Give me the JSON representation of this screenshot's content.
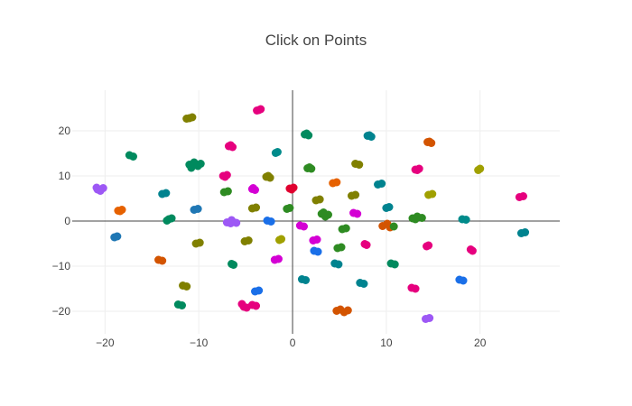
{
  "chart_data": {
    "type": "scatter",
    "title": "Click on Points",
    "xlabel": "",
    "ylabel": "",
    "xlim": [
      -23.5,
      28.5
    ],
    "ylim": [
      -25,
      29
    ],
    "x_ticks": [
      -20,
      -10,
      0,
      10,
      20
    ],
    "y_ticks": [
      -20,
      -10,
      0,
      10,
      20
    ],
    "x_tick_labels": [
      "−20",
      "−10",
      "0",
      "10",
      "20"
    ],
    "y_tick_labels": [
      "−20",
      "−10",
      "0",
      "10",
      "20"
    ],
    "grid": true,
    "zero_lines": true,
    "legend": "none",
    "colors": [
      "#1f77b4",
      "#00838f",
      "#008a5e",
      "#2e8b22",
      "#808000",
      "#a0a000",
      "#e66100",
      "#d35400",
      "#ff4fa0",
      "#e6007e",
      "#d400d4",
      "#a33fee",
      "#9d58f5",
      "#1a6fe8",
      "#e00030",
      "#008b8b"
    ],
    "points": [
      {
        "x": -11.0,
        "y": 22.8,
        "c": "#808000"
      },
      {
        "x": -10.7,
        "y": 23.0,
        "c": "#808000"
      },
      {
        "x": -11.3,
        "y": 22.7,
        "c": "#808000"
      },
      {
        "x": -3.6,
        "y": 24.6,
        "c": "#e6007e"
      },
      {
        "x": -3.4,
        "y": 24.8,
        "c": "#e6007e"
      },
      {
        "x": -3.8,
        "y": 24.5,
        "c": "#e6007e"
      },
      {
        "x": 1.3,
        "y": 19.2,
        "c": "#008a5e"
      },
      {
        "x": 1.7,
        "y": 19.0,
        "c": "#008a5e"
      },
      {
        "x": 1.5,
        "y": 19.4,
        "c": "#008a5e"
      },
      {
        "x": 8.0,
        "y": 18.9,
        "c": "#00838f"
      },
      {
        "x": 8.4,
        "y": 18.7,
        "c": "#00838f"
      },
      {
        "x": 8.2,
        "y": 19.0,
        "c": "#00838f"
      },
      {
        "x": 14.4,
        "y": 17.5,
        "c": "#d35400"
      },
      {
        "x": 14.8,
        "y": 17.3,
        "c": "#d35400"
      },
      {
        "x": 14.6,
        "y": 17.6,
        "c": "#d35400"
      },
      {
        "x": -6.8,
        "y": 16.6,
        "c": "#e6007e"
      },
      {
        "x": -6.4,
        "y": 16.4,
        "c": "#e6007e"
      },
      {
        "x": -6.6,
        "y": 16.8,
        "c": "#e6007e"
      },
      {
        "x": -17.4,
        "y": 14.6,
        "c": "#008a5e"
      },
      {
        "x": -17.0,
        "y": 14.3,
        "c": "#008a5e"
      },
      {
        "x": -1.8,
        "y": 15.1,
        "c": "#008b8b"
      },
      {
        "x": -1.6,
        "y": 15.3,
        "c": "#008b8b"
      },
      {
        "x": -11.0,
        "y": 12.5,
        "c": "#008a5e"
      },
      {
        "x": -10.5,
        "y": 13.0,
        "c": "#008a5e"
      },
      {
        "x": -10.1,
        "y": 12.2,
        "c": "#008a5e"
      },
      {
        "x": -10.8,
        "y": 11.8,
        "c": "#008a5e"
      },
      {
        "x": -9.8,
        "y": 12.7,
        "c": "#008a5e"
      },
      {
        "x": 1.6,
        "y": 11.7,
        "c": "#2e8b22"
      },
      {
        "x": 2.0,
        "y": 11.6,
        "c": "#2e8b22"
      },
      {
        "x": 1.8,
        "y": 11.9,
        "c": "#2e8b22"
      },
      {
        "x": 6.7,
        "y": 12.7,
        "c": "#808000"
      },
      {
        "x": 7.1,
        "y": 12.5,
        "c": "#808000"
      },
      {
        "x": 13.1,
        "y": 11.4,
        "c": "#e6007e"
      },
      {
        "x": 13.5,
        "y": 11.6,
        "c": "#e6007e"
      },
      {
        "x": 13.3,
        "y": 11.3,
        "c": "#e6007e"
      },
      {
        "x": 19.8,
        "y": 11.3,
        "c": "#a0a000"
      },
      {
        "x": 20.0,
        "y": 11.6,
        "c": "#a0a000"
      },
      {
        "x": -7.4,
        "y": 10.0,
        "c": "#e6007e"
      },
      {
        "x": -7.0,
        "y": 10.2,
        "c": "#e6007e"
      },
      {
        "x": -7.2,
        "y": 9.8,
        "c": "#e6007e"
      },
      {
        "x": -2.8,
        "y": 9.8,
        "c": "#808000"
      },
      {
        "x": -2.4,
        "y": 9.6,
        "c": "#808000"
      },
      {
        "x": -2.6,
        "y": 10.0,
        "c": "#808000"
      },
      {
        "x": 4.3,
        "y": 8.4,
        "c": "#e66100"
      },
      {
        "x": 4.7,
        "y": 8.6,
        "c": "#e66100"
      },
      {
        "x": 9.1,
        "y": 8.1,
        "c": "#00838f"
      },
      {
        "x": 9.5,
        "y": 8.3,
        "c": "#00838f"
      },
      {
        "x": -20.8,
        "y": 7.0,
        "c": "#9d58f5"
      },
      {
        "x": -20.2,
        "y": 7.3,
        "c": "#9d58f5"
      },
      {
        "x": -20.5,
        "y": 6.7,
        "c": "#9d58f5"
      },
      {
        "x": -20.9,
        "y": 7.4,
        "c": "#9d58f5"
      },
      {
        "x": -7.3,
        "y": 6.4,
        "c": "#2e8b22"
      },
      {
        "x": -6.9,
        "y": 6.6,
        "c": "#2e8b22"
      },
      {
        "x": -4.3,
        "y": 7.1,
        "c": "#d400d4"
      },
      {
        "x": -4.0,
        "y": 6.9,
        "c": "#d400d4"
      },
      {
        "x": -4.2,
        "y": 7.3,
        "c": "#d400d4"
      },
      {
        "x": -0.3,
        "y": 7.2,
        "c": "#e00030"
      },
      {
        "x": 0.1,
        "y": 7.4,
        "c": "#e00030"
      },
      {
        "x": -0.1,
        "y": 7.0,
        "c": "#e00030"
      },
      {
        "x": -13.9,
        "y": 6.0,
        "c": "#00838f"
      },
      {
        "x": -13.5,
        "y": 6.2,
        "c": "#00838f"
      },
      {
        "x": 2.5,
        "y": 4.6,
        "c": "#808000"
      },
      {
        "x": 2.9,
        "y": 4.8,
        "c": "#808000"
      },
      {
        "x": 6.3,
        "y": 5.6,
        "c": "#808000"
      },
      {
        "x": 6.7,
        "y": 5.8,
        "c": "#808000"
      },
      {
        "x": 14.5,
        "y": 5.8,
        "c": "#a0a000"
      },
      {
        "x": 14.9,
        "y": 6.0,
        "c": "#a0a000"
      },
      {
        "x": 24.2,
        "y": 5.3,
        "c": "#e6007e"
      },
      {
        "x": 24.6,
        "y": 5.5,
        "c": "#e6007e"
      },
      {
        "x": -18.6,
        "y": 2.3,
        "c": "#e66100"
      },
      {
        "x": -18.2,
        "y": 2.5,
        "c": "#e66100"
      },
      {
        "x": -18.4,
        "y": 2.2,
        "c": "#e66100"
      },
      {
        "x": -10.5,
        "y": 2.5,
        "c": "#1f77b4"
      },
      {
        "x": -10.1,
        "y": 2.7,
        "c": "#1f77b4"
      },
      {
        "x": -4.3,
        "y": 2.8,
        "c": "#808000"
      },
      {
        "x": -3.9,
        "y": 3.0,
        "c": "#808000"
      },
      {
        "x": -0.6,
        "y": 2.7,
        "c": "#2e8b22"
      },
      {
        "x": -0.3,
        "y": 2.9,
        "c": "#2e8b22"
      },
      {
        "x": 3.1,
        "y": 1.6,
        "c": "#2e8b22"
      },
      {
        "x": 3.5,
        "y": 1.0,
        "c": "#2e8b22"
      },
      {
        "x": 3.8,
        "y": 1.4,
        "c": "#2e8b22"
      },
      {
        "x": 3.3,
        "y": 1.9,
        "c": "#2e8b22"
      },
      {
        "x": 6.5,
        "y": 1.8,
        "c": "#d400d4"
      },
      {
        "x": 6.9,
        "y": 1.6,
        "c": "#d400d4"
      },
      {
        "x": 10.0,
        "y": 2.9,
        "c": "#00838f"
      },
      {
        "x": 10.3,
        "y": 3.1,
        "c": "#00838f"
      },
      {
        "x": -13.2,
        "y": 0.4,
        "c": "#008a5e"
      },
      {
        "x": -12.9,
        "y": 0.6,
        "c": "#008a5e"
      },
      {
        "x": -13.4,
        "y": 0.1,
        "c": "#008a5e"
      },
      {
        "x": -7.0,
        "y": -0.3,
        "c": "#9d58f5"
      },
      {
        "x": -6.5,
        "y": 0.2,
        "c": "#9d58f5"
      },
      {
        "x": -6.0,
        "y": -0.4,
        "c": "#9d58f5"
      },
      {
        "x": -6.6,
        "y": -0.5,
        "c": "#9d58f5"
      },
      {
        "x": -2.7,
        "y": 0.1,
        "c": "#1a6fe8"
      },
      {
        "x": -2.3,
        "y": -0.1,
        "c": "#1a6fe8"
      },
      {
        "x": 0.8,
        "y": -1.0,
        "c": "#d400d4"
      },
      {
        "x": 1.2,
        "y": -1.2,
        "c": "#d400d4"
      },
      {
        "x": 5.3,
        "y": -1.8,
        "c": "#2e8b22"
      },
      {
        "x": 5.7,
        "y": -1.6,
        "c": "#2e8b22"
      },
      {
        "x": 9.6,
        "y": -1.1,
        "c": "#d35400"
      },
      {
        "x": 10.1,
        "y": -0.6,
        "c": "#d35400"
      },
      {
        "x": 10.4,
        "y": -1.4,
        "c": "#d35400"
      },
      {
        "x": 10.8,
        "y": -1.2,
        "c": "#2e8b22"
      },
      {
        "x": 12.8,
        "y": 0.6,
        "c": "#2e8b22"
      },
      {
        "x": 13.3,
        "y": 1.0,
        "c": "#2e8b22"
      },
      {
        "x": 13.8,
        "y": 0.7,
        "c": "#2e8b22"
      },
      {
        "x": 13.1,
        "y": 0.4,
        "c": "#2e8b22"
      },
      {
        "x": 18.1,
        "y": 0.4,
        "c": "#008b8b"
      },
      {
        "x": 18.5,
        "y": 0.3,
        "c": "#008b8b"
      },
      {
        "x": 24.4,
        "y": -2.7,
        "c": "#00838f"
      },
      {
        "x": 24.8,
        "y": -2.5,
        "c": "#00838f"
      },
      {
        "x": -19.0,
        "y": -3.6,
        "c": "#1f77b4"
      },
      {
        "x": -18.7,
        "y": -3.4,
        "c": "#1f77b4"
      },
      {
        "x": -10.3,
        "y": -5.0,
        "c": "#808000"
      },
      {
        "x": -9.9,
        "y": -4.8,
        "c": "#808000"
      },
      {
        "x": -5.1,
        "y": -4.5,
        "c": "#808000"
      },
      {
        "x": -4.7,
        "y": -4.3,
        "c": "#808000"
      },
      {
        "x": -1.4,
        "y": -4.2,
        "c": "#a0a000"
      },
      {
        "x": -1.2,
        "y": -4.0,
        "c": "#a0a000"
      },
      {
        "x": 2.2,
        "y": -4.3,
        "c": "#d400d4"
      },
      {
        "x": 2.6,
        "y": -4.1,
        "c": "#d400d4"
      },
      {
        "x": 2.3,
        "y": -6.6,
        "c": "#1a6fe8"
      },
      {
        "x": 2.7,
        "y": -6.8,
        "c": "#1a6fe8"
      },
      {
        "x": 4.8,
        "y": -6.0,
        "c": "#2e8b22"
      },
      {
        "x": 5.2,
        "y": -5.8,
        "c": "#2e8b22"
      },
      {
        "x": 7.7,
        "y": -5.1,
        "c": "#e6007e"
      },
      {
        "x": 7.9,
        "y": -5.3,
        "c": "#e6007e"
      },
      {
        "x": 14.3,
        "y": -5.6,
        "c": "#e6007e"
      },
      {
        "x": 14.5,
        "y": -5.4,
        "c": "#e6007e"
      },
      {
        "x": 19.0,
        "y": -6.3,
        "c": "#e6007e"
      },
      {
        "x": 19.2,
        "y": -6.6,
        "c": "#e6007e"
      },
      {
        "x": -14.3,
        "y": -8.6,
        "c": "#d35400"
      },
      {
        "x": -13.9,
        "y": -8.8,
        "c": "#d35400"
      },
      {
        "x": -6.5,
        "y": -9.5,
        "c": "#008a5e"
      },
      {
        "x": -6.3,
        "y": -9.7,
        "c": "#008a5e"
      },
      {
        "x": -1.9,
        "y": -8.6,
        "c": "#d400d4"
      },
      {
        "x": -1.5,
        "y": -8.4,
        "c": "#d400d4"
      },
      {
        "x": 4.5,
        "y": -9.4,
        "c": "#00838f"
      },
      {
        "x": 4.9,
        "y": -9.6,
        "c": "#00838f"
      },
      {
        "x": 10.5,
        "y": -9.4,
        "c": "#008a5e"
      },
      {
        "x": 10.9,
        "y": -9.6,
        "c": "#008a5e"
      },
      {
        "x": -11.7,
        "y": -14.3,
        "c": "#808000"
      },
      {
        "x": -11.3,
        "y": -14.5,
        "c": "#808000"
      },
      {
        "x": 1.0,
        "y": -12.9,
        "c": "#00838f"
      },
      {
        "x": 1.4,
        "y": -13.1,
        "c": "#00838f"
      },
      {
        "x": 7.2,
        "y": -13.7,
        "c": "#00838f"
      },
      {
        "x": 7.6,
        "y": -13.9,
        "c": "#00838f"
      },
      {
        "x": 12.7,
        "y": -14.8,
        "c": "#e6007e"
      },
      {
        "x": 13.1,
        "y": -15.0,
        "c": "#e6007e"
      },
      {
        "x": 17.8,
        "y": -13.0,
        "c": "#1a6fe8"
      },
      {
        "x": 18.2,
        "y": -13.2,
        "c": "#1a6fe8"
      },
      {
        "x": -4.0,
        "y": -15.6,
        "c": "#1a6fe8"
      },
      {
        "x": -3.6,
        "y": -15.4,
        "c": "#1a6fe8"
      },
      {
        "x": -12.2,
        "y": -18.5,
        "c": "#008a5e"
      },
      {
        "x": -11.8,
        "y": -18.7,
        "c": "#008a5e"
      },
      {
        "x": -5.4,
        "y": -18.4,
        "c": "#e6007e"
      },
      {
        "x": -4.9,
        "y": -19.2,
        "c": "#e6007e"
      },
      {
        "x": -4.3,
        "y": -18.6,
        "c": "#e6007e"
      },
      {
        "x": -3.9,
        "y": -18.8,
        "c": "#e6007e"
      },
      {
        "x": -5.2,
        "y": -19.0,
        "c": "#e6007e"
      },
      {
        "x": 4.7,
        "y": -19.9,
        "c": "#d35400"
      },
      {
        "x": 5.1,
        "y": -19.6,
        "c": "#d35400"
      },
      {
        "x": 5.5,
        "y": -20.2,
        "c": "#d35400"
      },
      {
        "x": 5.9,
        "y": -19.8,
        "c": "#d35400"
      },
      {
        "x": 14.2,
        "y": -21.7,
        "c": "#9d58f5"
      },
      {
        "x": 14.6,
        "y": -21.5,
        "c": "#9d58f5"
      }
    ]
  }
}
